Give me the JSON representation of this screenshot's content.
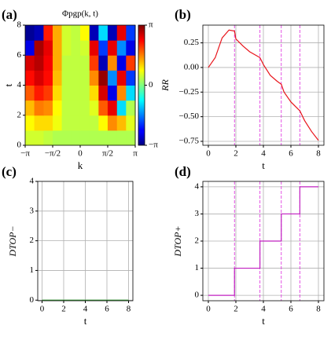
{
  "chart_data": [
    {
      "type": "heatmap",
      "panel_label": "(a)",
      "title": "Φpgp(k, t)",
      "xlabel": "k",
      "ylabel": "t",
      "x": [
        -2.88,
        -2.36,
        -1.83,
        -1.31,
        -0.79,
        -0.26,
        0.26,
        0.79,
        1.31,
        1.83,
        2.36,
        2.88
      ],
      "y": [
        0.5,
        1.5,
        2.5,
        3.5,
        4.5,
        5.5,
        6.5,
        7.5
      ],
      "z": [
        [
          0.5,
          0.5,
          0.4,
          0.3,
          0.3,
          0.3,
          0.3,
          0.3,
          0.3,
          0.3,
          0.3,
          0.3
        ],
        [
          0.8,
          1.0,
          1.0,
          0.7,
          0.4,
          0.4,
          0.4,
          0.4,
          0.8,
          1.5,
          1.2,
          0.6
        ],
        [
          1.2,
          1.6,
          1.5,
          0.8,
          0.4,
          0.4,
          0.4,
          0.6,
          1.8,
          2.5,
          -1.0,
          0.3
        ],
        [
          1.8,
          2.2,
          2.0,
          1.0,
          0.4,
          0.4,
          0.4,
          1.0,
          2.6,
          -2.5,
          1.5,
          -1.0
        ],
        [
          2.3,
          2.6,
          2.3,
          1.2,
          0.4,
          0.4,
          0.4,
          1.5,
          3.0,
          -1.5,
          2.5,
          -2.0
        ],
        [
          2.6,
          2.8,
          2.4,
          1.3,
          0.4,
          0.4,
          0.4,
          2.0,
          -2.8,
          1.5,
          -2.5,
          2.0
        ],
        [
          -2.5,
          2.9,
          2.5,
          1.3,
          0.5,
          0.4,
          0.5,
          2.5,
          -2.0,
          2.5,
          -1.5,
          -2.5
        ],
        [
          -3.0,
          -2.8,
          2.2,
          1.3,
          0.5,
          0.4,
          0.8,
          -2.8,
          -1.0,
          -2.8,
          2.5,
          -2.0
        ]
      ],
      "xlim": [
        -3.1416,
        3.1416
      ],
      "ylim": [
        0,
        8
      ],
      "xticks": [
        {
          "value": -3.1416,
          "label": "−π"
        },
        {
          "value": -1.5708,
          "label": "−π/2"
        },
        0,
        {
          "value": 1.5708,
          "label": "π/2"
        },
        {
          "value": 3.1416,
          "label": "π"
        }
      ],
      "yticks": [
        0,
        2,
        4,
        6,
        8
      ],
      "colorbar": {
        "lim": [
          -3.1416,
          3.1416
        ],
        "ticks": [
          {
            "value": -3.1416,
            "label": "−π"
          },
          0,
          {
            "value": 3.1416,
            "label": "π"
          }
        ],
        "colormap": "jet"
      }
    },
    {
      "type": "line",
      "panel_label": "(b)",
      "xlabel": "t",
      "ylabel": "RR",
      "color": "#e8141b",
      "grid": true,
      "x": [
        0,
        0.5,
        1,
        1.5,
        1.9,
        2.0,
        2.5,
        3,
        3.5,
        3.75,
        4,
        4.5,
        5,
        5.3,
        5.5,
        6,
        6.5,
        6.65,
        7,
        7.5,
        8
      ],
      "values": [
        0,
        0.1,
        0.3,
        0.38,
        0.37,
        0.29,
        0.22,
        0.16,
        0.12,
        0.1,
        0.03,
        -0.08,
        -0.14,
        -0.17,
        -0.25,
        -0.35,
        -0.42,
        -0.44,
        -0.54,
        -0.65,
        -0.74
      ],
      "vlines": [
        1.9,
        3.75,
        5.3,
        6.65
      ],
      "vline_color": "#e040e0",
      "xlim": [
        -0.4,
        8.4
      ],
      "ylim": [
        -0.79,
        0.43
      ],
      "xticks": [
        0,
        2,
        4,
        6,
        8
      ],
      "yticks": [
        {
          "value": -0.75,
          "label": "−0.75"
        },
        {
          "value": -0.5,
          "label": "−0.50"
        },
        {
          "value": -0.25,
          "label": "−0.25"
        },
        {
          "value": 0,
          "label": "0.00"
        },
        0.25
      ]
    },
    {
      "type": "line",
      "panel_label": "(c)",
      "xlabel": "t",
      "ylabel": "DTOP−",
      "color": "#3a9a3a",
      "grid": true,
      "x": [
        0,
        8
      ],
      "values": [
        0,
        0
      ],
      "xlim": [
        -0.4,
        8.4
      ],
      "ylim": [
        -0.02,
        4
      ],
      "xticks": [
        0,
        2,
        4,
        6,
        8
      ],
      "yticks": [
        0,
        1,
        2,
        3,
        4
      ]
    },
    {
      "type": "line",
      "panel_label": "(d)",
      "xlabel": "t",
      "ylabel": "DTOP+",
      "color": "#c020c0",
      "grid": true,
      "x": [
        0,
        1.9,
        1.9,
        3.75,
        3.75,
        5.3,
        5.3,
        6.65,
        6.65,
        8
      ],
      "values": [
        0,
        0,
        1,
        1,
        2,
        2,
        3,
        3,
        4,
        4
      ],
      "vlines": [
        1.9,
        3.75,
        5.3,
        6.65
      ],
      "vline_color": "#e040e0",
      "xlim": [
        -0.4,
        8.4
      ],
      "ylim": [
        -0.2,
        4.2
      ],
      "xticks": [
        0,
        2,
        4,
        6,
        8
      ],
      "yticks": [
        0,
        1,
        2,
        3,
        4
      ]
    }
  ]
}
